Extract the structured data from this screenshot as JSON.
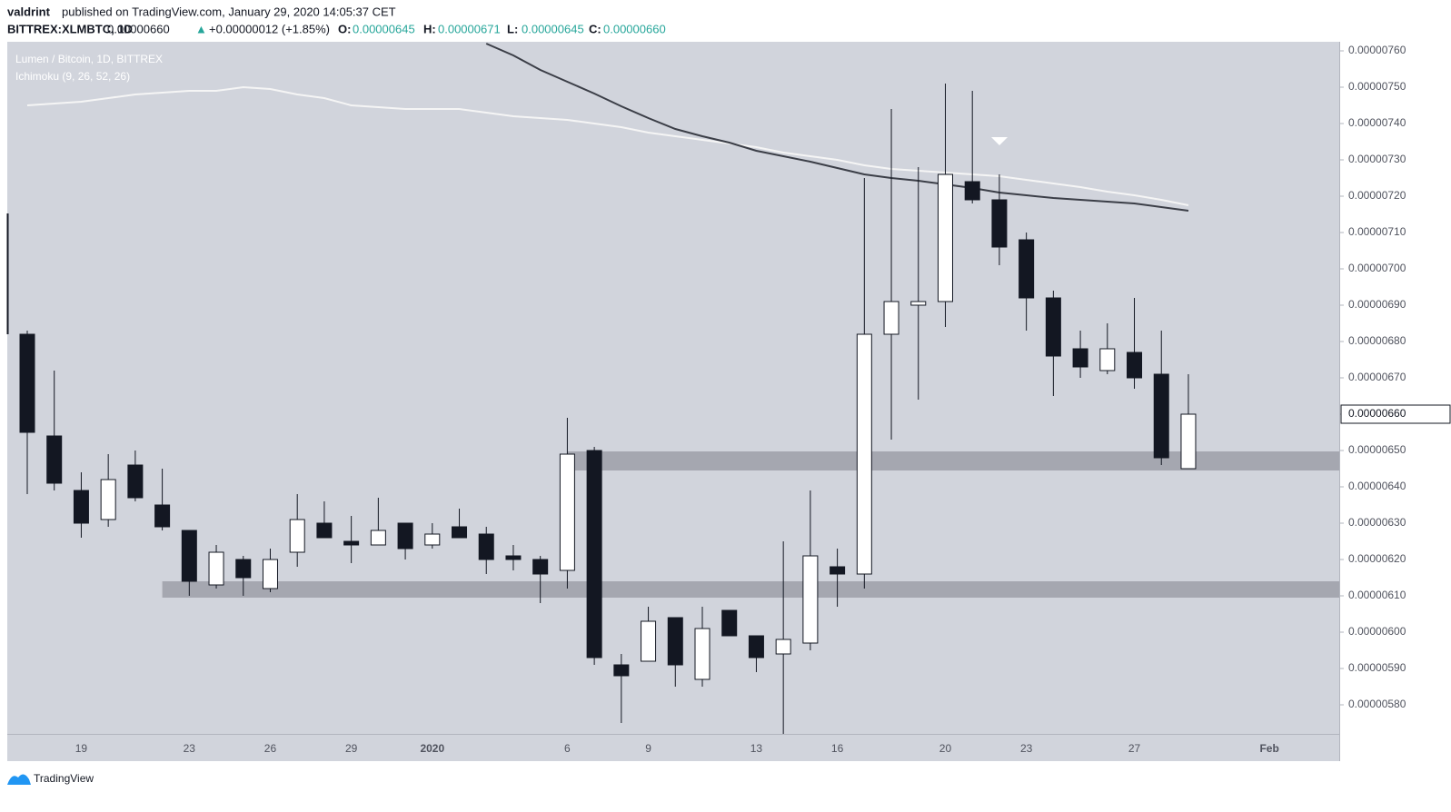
{
  "header": {
    "author": "valdrint",
    "published": "published on TradingView.com, January 29, 2020 14:05:37 CET",
    "symbol": "BITTREX:XLMBTC, 1D",
    "last": "0.00000660",
    "change_arrow": "▲",
    "change": "+0.00000012 (+1.85%)",
    "ohlc": [
      {
        "key": "O:",
        "value": "0.00000645"
      },
      {
        "key": "H:",
        "value": "0.00000671"
      },
      {
        "key": "L:",
        "value": "0.00000645"
      },
      {
        "key": "C:",
        "value": "0.00000660"
      }
    ]
  },
  "footer": {
    "brand": "TradingView"
  },
  "chart_data": {
    "type": "candlestick",
    "title": "Lumen / Bitcoin, 1D, BITTREX",
    "indicator_label": "Ichimoku (9, 26, 52, 26)",
    "categories": [
      null,
      null,
      "19",
      null,
      null,
      null,
      "23",
      null,
      null,
      "26",
      null,
      null,
      "29",
      null,
      null,
      "2020",
      null,
      null,
      null,
      null,
      "6",
      null,
      null,
      "9",
      null,
      null,
      null,
      "13",
      null,
      null,
      "16",
      null,
      null,
      null,
      "20",
      null,
      null,
      "23",
      null,
      null,
      null,
      "27",
      null,
      null,
      null,
      null,
      "Feb"
    ],
    "open": [
      6.82e-06,
      6.54e-06,
      6.39e-06,
      6.31e-06,
      6.46e-06,
      6.35e-06,
      6.28e-06,
      6.13e-06,
      6.2e-06,
      6.12e-06,
      6.22e-06,
      6.3e-06,
      6.25e-06,
      6.24e-06,
      6.3e-06,
      6.24e-06,
      6.29e-06,
      6.27e-06,
      6.21e-06,
      6.2e-06,
      6.17e-06,
      6.5e-06,
      5.91e-06,
      5.92e-06,
      6.04e-06,
      5.87e-06,
      6.06e-06,
      5.99e-06,
      5.94e-06,
      5.97e-06,
      6.18e-06,
      6.16e-06,
      6.82e-06,
      6.9e-06,
      6.91e-06,
      7.24e-06,
      7.19e-06,
      7.08e-06,
      6.92e-06,
      6.78e-06,
      6.72e-06,
      6.77e-06,
      6.71e-06,
      6.45e-06,
      null,
      null,
      null
    ],
    "high": [
      6.83e-06,
      6.72e-06,
      6.44e-06,
      6.49e-06,
      6.5e-06,
      6.45e-06,
      6.28e-06,
      6.24e-06,
      6.21e-06,
      6.23e-06,
      6.38e-06,
      6.36e-06,
      6.32e-06,
      6.37e-06,
      6.3e-06,
      6.3e-06,
      6.34e-06,
      6.29e-06,
      6.24e-06,
      6.21e-06,
      6.59e-06,
      6.51e-06,
      5.94e-06,
      6.07e-06,
      6.04e-06,
      6.07e-06,
      6.06e-06,
      5.99e-06,
      6.25e-06,
      6.39e-06,
      6.23e-06,
      7.25e-06,
      7.44e-06,
      7.28e-06,
      7.51e-06,
      7.49e-06,
      7.26e-06,
      7.1e-06,
      6.94e-06,
      6.83e-06,
      6.85e-06,
      6.92e-06,
      6.83e-06,
      6.71e-06,
      null,
      null,
      null
    ],
    "low": [
      6.38e-06,
      6.39e-06,
      6.26e-06,
      6.29e-06,
      6.36e-06,
      6.28e-06,
      6.1e-06,
      6.12e-06,
      6.1e-06,
      6.11e-06,
      6.18e-06,
      6.26e-06,
      6.19e-06,
      6.24e-06,
      6.2e-06,
      6.23e-06,
      6.26e-06,
      6.16e-06,
      6.17e-06,
      6.08e-06,
      6.12e-06,
      5.91e-06,
      5.75e-06,
      5.92e-06,
      5.85e-06,
      5.85e-06,
      5.99e-06,
      5.89e-06,
      5.72e-06,
      5.95e-06,
      6.07e-06,
      6.12e-06,
      6.53e-06,
      6.64e-06,
      6.84e-06,
      7.18e-06,
      7.01e-06,
      6.83e-06,
      6.65e-06,
      6.7e-06,
      6.71e-06,
      6.67e-06,
      6.46e-06,
      6.45e-06,
      null,
      null,
      null
    ],
    "close": [
      6.55e-06,
      6.41e-06,
      6.3e-06,
      6.42e-06,
      6.37e-06,
      6.29e-06,
      6.14e-06,
      6.22e-06,
      6.15e-06,
      6.2e-06,
      6.31e-06,
      6.26e-06,
      6.24e-06,
      6.28e-06,
      6.23e-06,
      6.27e-06,
      6.26e-06,
      6.2e-06,
      6.2e-06,
      6.16e-06,
      6.49e-06,
      5.93e-06,
      5.88e-06,
      6.03e-06,
      5.91e-06,
      6.01e-06,
      5.99e-06,
      5.93e-06,
      5.98e-06,
      6.21e-06,
      6.16e-06,
      6.82e-06,
      6.91e-06,
      6.91e-06,
      7.26e-06,
      7.19e-06,
      7.06e-06,
      6.92e-06,
      6.76e-06,
      6.73e-06,
      6.78e-06,
      6.7e-06,
      6.48e-06,
      6.6e-06,
      null,
      null,
      null
    ],
    "up_color": "#ffffff",
    "down_color": "#131722",
    "wick_color": "#131722",
    "lines": [
      {
        "color": "#f5f5f5",
        "values": [
          7.45e-06,
          7.455e-06,
          7.46e-06,
          7.47e-06,
          7.48e-06,
          7.485e-06,
          7.49e-06,
          7.49e-06,
          7.5e-06,
          7.495e-06,
          7.48e-06,
          7.47e-06,
          7.45e-06,
          7.445e-06,
          7.44e-06,
          7.44e-06,
          7.44e-06,
          7.43e-06,
          7.42e-06,
          7.415e-06,
          7.41e-06,
          7.4e-06,
          7.39e-06,
          7.375e-06,
          7.365e-06,
          7.355e-06,
          7.345e-06,
          7.335e-06,
          7.32e-06,
          7.31e-06,
          7.3e-06,
          7.285e-06,
          7.275e-06,
          7.27e-06,
          7.265e-06,
          7.26e-06,
          7.255e-06,
          7.245e-06,
          7.235e-06,
          7.225e-06,
          7.2125e-06,
          7.2025e-06,
          7.19e-06,
          7.175e-06,
          null,
          null,
          null
        ]
      },
      {
        "color": "#3b3e47",
        "values": [
          null,
          null,
          null,
          null,
          null,
          null,
          null,
          null,
          null,
          null,
          null,
          null,
          null,
          null,
          null,
          null,
          null,
          7.62e-06,
          7.5875e-06,
          7.5475e-06,
          7.515e-06,
          7.4825e-06,
          7.4475e-06,
          7.415e-06,
          7.385e-06,
          7.365e-06,
          7.3475e-06,
          7.325e-06,
          7.31e-06,
          7.295e-06,
          7.2775e-06,
          7.26e-06,
          7.25e-06,
          7.2425e-06,
          7.2325e-06,
          7.2225e-06,
          7.21e-06,
          7.2025e-06,
          7.195e-06,
          7.19e-06,
          7.185e-06,
          7.18e-06,
          7.17e-06,
          7.16e-06,
          null,
          null,
          null
        ]
      }
    ],
    "zones": [
      {
        "start": 5,
        "low": 6.095e-06,
        "high": 6.14e-06,
        "color": "#9598a1"
      },
      {
        "start": 20,
        "low": 6.445e-06,
        "high": 6.4975e-06,
        "color": "#9598a1"
      }
    ],
    "ylim": [
      5.72e-06,
      7.625e-06
    ],
    "yticks": [
      {
        "value": 5.8e-06,
        "label": "0.00000580"
      },
      {
        "value": 5.9e-06,
        "label": "0.00000590"
      },
      {
        "value": 6e-06,
        "label": "0.00000600"
      },
      {
        "value": 6.1e-06,
        "label": "0.00000610"
      },
      {
        "value": 6.2e-06,
        "label": "0.00000620"
      },
      {
        "value": 6.3e-06,
        "label": "0.00000630"
      },
      {
        "value": 6.4e-06,
        "label": "0.00000640"
      },
      {
        "value": 6.5e-06,
        "label": "0.00000650"
      },
      {
        "value": 6.6e-06,
        "label": "0.00000660"
      },
      {
        "value": 6.7e-06,
        "label": "0.00000670"
      },
      {
        "value": 6.8e-06,
        "label": "0.00000680"
      },
      {
        "value": 6.9e-06,
        "label": "0.00000690"
      },
      {
        "value": 7e-06,
        "label": "0.00000700"
      },
      {
        "value": 7.1e-06,
        "label": "0.00000710"
      },
      {
        "value": 7.2e-06,
        "label": "0.00000720"
      },
      {
        "value": 7.3e-06,
        "label": "0.00000730"
      },
      {
        "value": 7.4e-06,
        "label": "0.00000740"
      },
      {
        "value": 7.5e-06,
        "label": "0.00000750"
      },
      {
        "value": 7.6e-06,
        "label": "0.00000760"
      }
    ],
    "price_line": {
      "value": 6.6e-06,
      "label": "0.00000660"
    }
  }
}
